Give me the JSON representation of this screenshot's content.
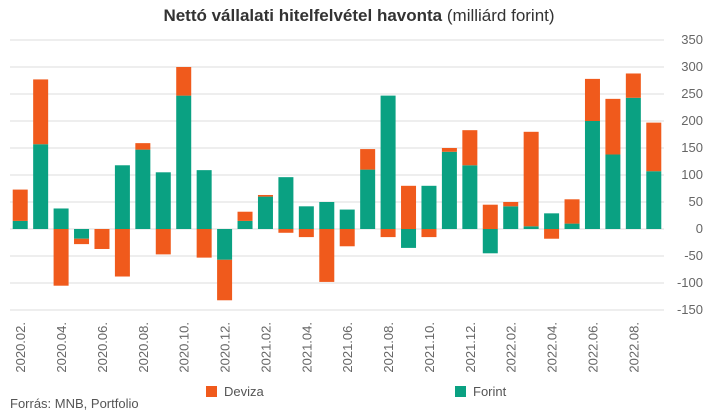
{
  "chart_data": {
    "type": "bar",
    "stacked": true,
    "title": "Nettó vállalati hitelfelvétel havonta",
    "subtitle": "(milliárd forint)",
    "categories": [
      "2020.02.",
      "2020.03.",
      "2020.04.",
      "2020.05.",
      "2020.06.",
      "2020.07.",
      "2020.08.",
      "2020.09.",
      "2020.10.",
      "2020.11.",
      "2020.12.",
      "2021.01.",
      "2021.02.",
      "2021.03.",
      "2021.04.",
      "2021.05.",
      "2021.06.",
      "2021.07.",
      "2021.08.",
      "2021.09.",
      "2021.10.",
      "2021.11.",
      "2021.12.",
      "2022.01.",
      "2022.02.",
      "2022.03.",
      "2022.04.",
      "2022.05.",
      "2022.06.",
      "2022.07.",
      "2022.08.",
      "2022.09."
    ],
    "x_tick_labels": [
      "2020.02.",
      "2020.04.",
      "2020.06.",
      "2020.08.",
      "2020.10.",
      "2020.12.",
      "2021.02.",
      "2021.04.",
      "2021.06.",
      "2021.08.",
      "2021.10.",
      "2021.12.",
      "2022.02.",
      "2022.04.",
      "2022.06.",
      "2022.08."
    ],
    "series": [
      {
        "name": "Forint",
        "color": "#0aa182",
        "values": [
          15,
          157,
          38,
          -18,
          0,
          118,
          147,
          105,
          247,
          109,
          -57,
          15,
          60,
          96,
          42,
          50,
          36,
          110,
          247,
          -35,
          80,
          143,
          118,
          -45,
          42,
          5,
          29,
          10,
          200,
          138,
          243,
          107
        ]
      },
      {
        "name": "Deviza",
        "color": "#f05a1c",
        "values": [
          58,
          120,
          -105,
          -10,
          -37,
          -88,
          12,
          -47,
          53,
          -53,
          -75,
          17,
          3,
          -7,
          -15,
          -98,
          -32,
          38,
          -15,
          80,
          -15,
          7,
          65,
          45,
          8,
          175,
          -18,
          45,
          78,
          103,
          45,
          90
        ]
      }
    ],
    "ylim": [
      -150,
      350
    ],
    "y_ticks": [
      -150,
      -100,
      -50,
      0,
      50,
      100,
      150,
      200,
      250,
      300,
      350
    ],
    "y_axis_side": "right",
    "grid": true,
    "legend": "bottom"
  },
  "source": "Forrás: MNB, Portfolio"
}
